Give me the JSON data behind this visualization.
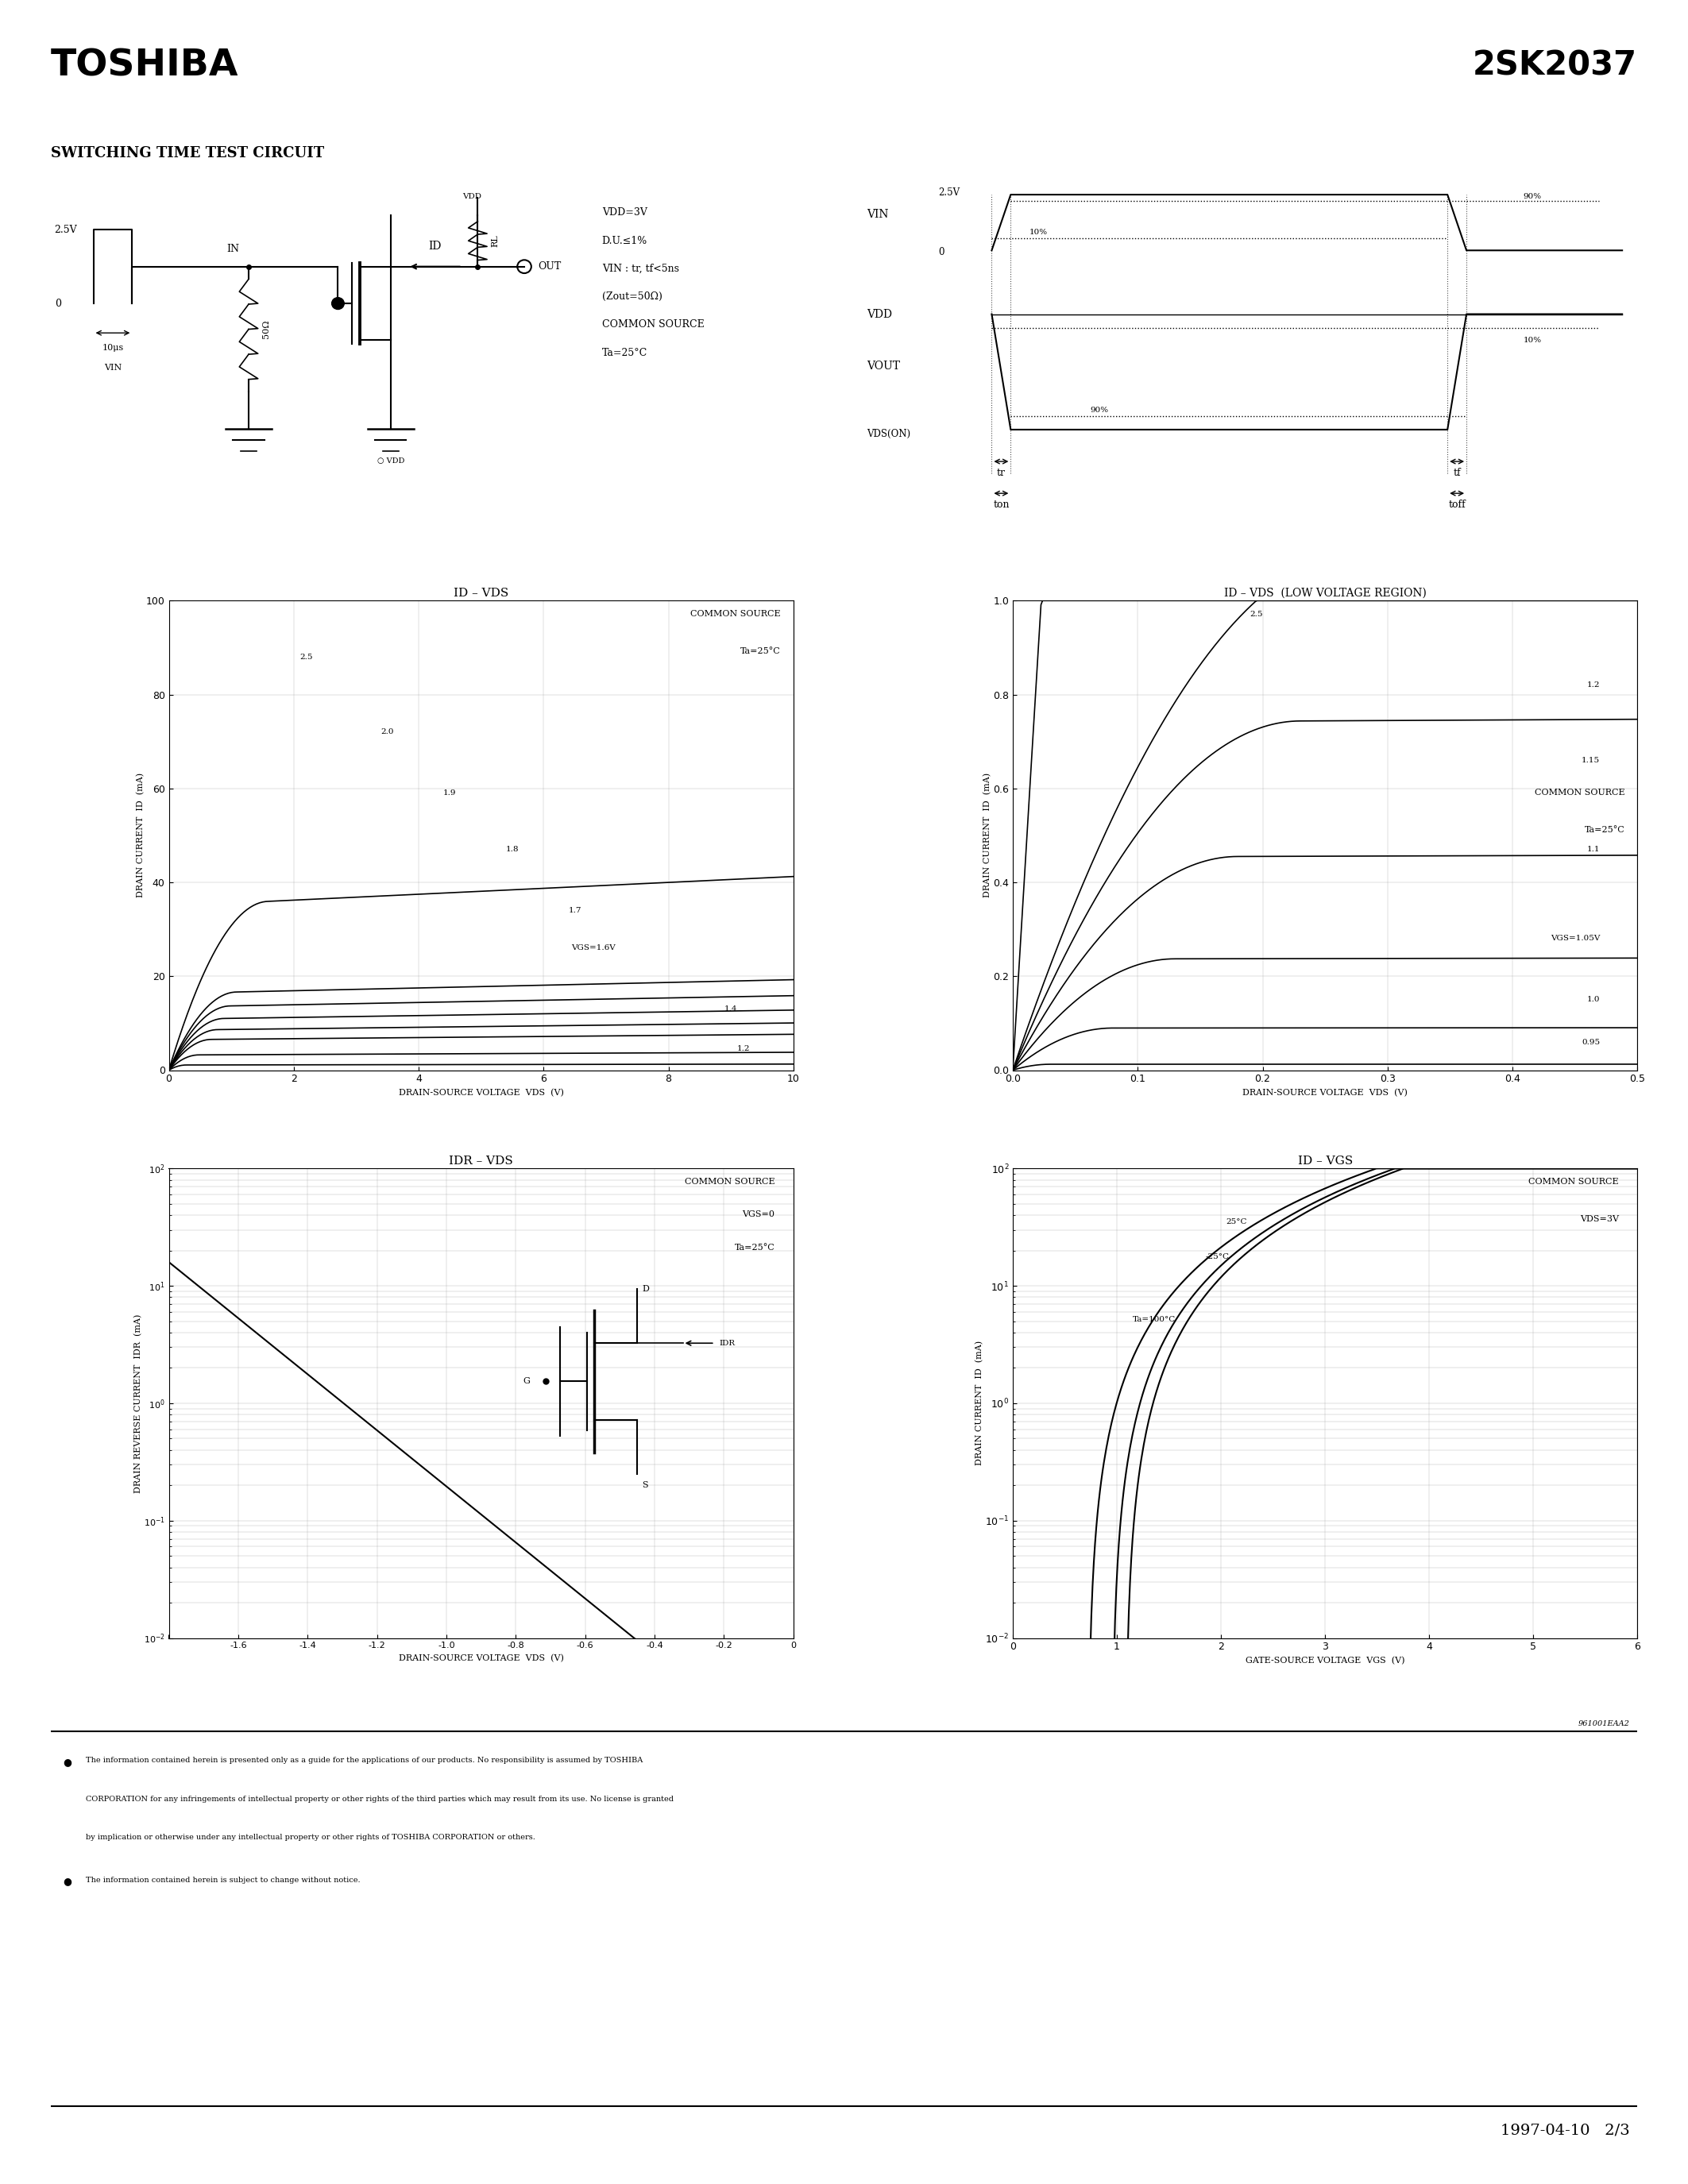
{
  "title_left": "TOSHIBA",
  "title_right": "2SK2037",
  "section_title": "SWITCHING TIME TEST CIRCUIT",
  "footer_text": "The information contained herein is presented only as a guide for the applications of our products. No responsibility is assumed by TOSHIBA CORPORATION for any infringements of intellectual property or other rights of the third parties which may result from its use. No license is granted by implication or otherwise under any intellectual property or other rights of TOSHIBA CORPORATION or others.",
  "footer_text2": "The information contained herein is subject to change without notice.",
  "footer_date": "1997-04-10   2/3",
  "footer_code": "961001EAA2",
  "graph1_title": "ID – VDS",
  "graph1_xlabel": "DRAIN-SOURCE VOLTAGE  VDS  (V)",
  "graph1_ylabel": "DRAIN CURRENT  ID  (mA)",
  "graph1_note1": "COMMON SOURCE",
  "graph1_note2": "Ta=25°C",
  "graph2_title": "ID – VDS  (LOW VOLTAGE REGION)",
  "graph2_xlabel": "DRAIN-SOURCE VOLTAGE  VDS  (V)",
  "graph2_ylabel": "DRAIN CURRENT  ID  (mA)",
  "graph2_note1": "COMMON SOURCE",
  "graph2_note2": "Ta=25°C",
  "graph3_title": "IDR – VDS",
  "graph3_xlabel": "DRAIN-SOURCE VOLTAGE  VDS  (V)",
  "graph3_ylabel": "DRAIN REVERSE CURRENT  IDR  (mA)",
  "graph3_note1": "COMMON SOURCE",
  "graph3_note2": "VGS=0",
  "graph3_note3": "Ta=25°C",
  "graph4_title": "ID – VGS",
  "graph4_xlabel": "GATE-SOURCE VOLTAGE  VGS  (V)",
  "graph4_ylabel": "DRAIN CURRENT  ID  (mA)",
  "graph4_note1": "COMMON SOURCE",
  "graph4_note2": "VDS=3V"
}
